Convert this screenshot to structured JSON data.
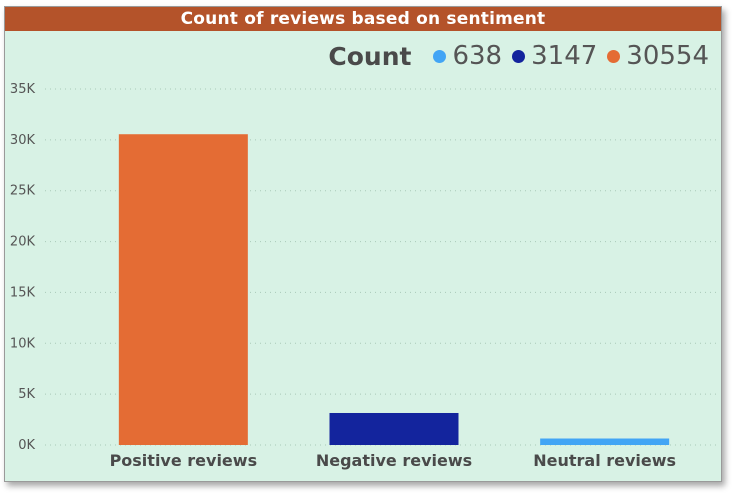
{
  "chart_data": {
    "type": "bar",
    "title": "Count of reviews based on sentiment",
    "legend_title": "Count",
    "categories": [
      "Positive reviews",
      "Negative reviews",
      "Neutral reviews"
    ],
    "values": [
      30554,
      3147,
      638
    ],
    "bar_colors": [
      "#e46c34",
      "#13249d",
      "#42a5f5"
    ],
    "legend": [
      {
        "label": "638",
        "color": "#42a5f5"
      },
      {
        "label": "3147",
        "color": "#13249d"
      },
      {
        "label": "30554",
        "color": "#e46c34"
      }
    ],
    "ylim": [
      0,
      35000
    ],
    "yticks": [
      0,
      5000,
      10000,
      15000,
      20000,
      25000,
      30000,
      35000
    ],
    "ytick_labels": [
      "0K",
      "5K",
      "10K",
      "15K",
      "20K",
      "25K",
      "30K",
      "35K"
    ],
    "grid": true,
    "legend_position": "top-right"
  }
}
